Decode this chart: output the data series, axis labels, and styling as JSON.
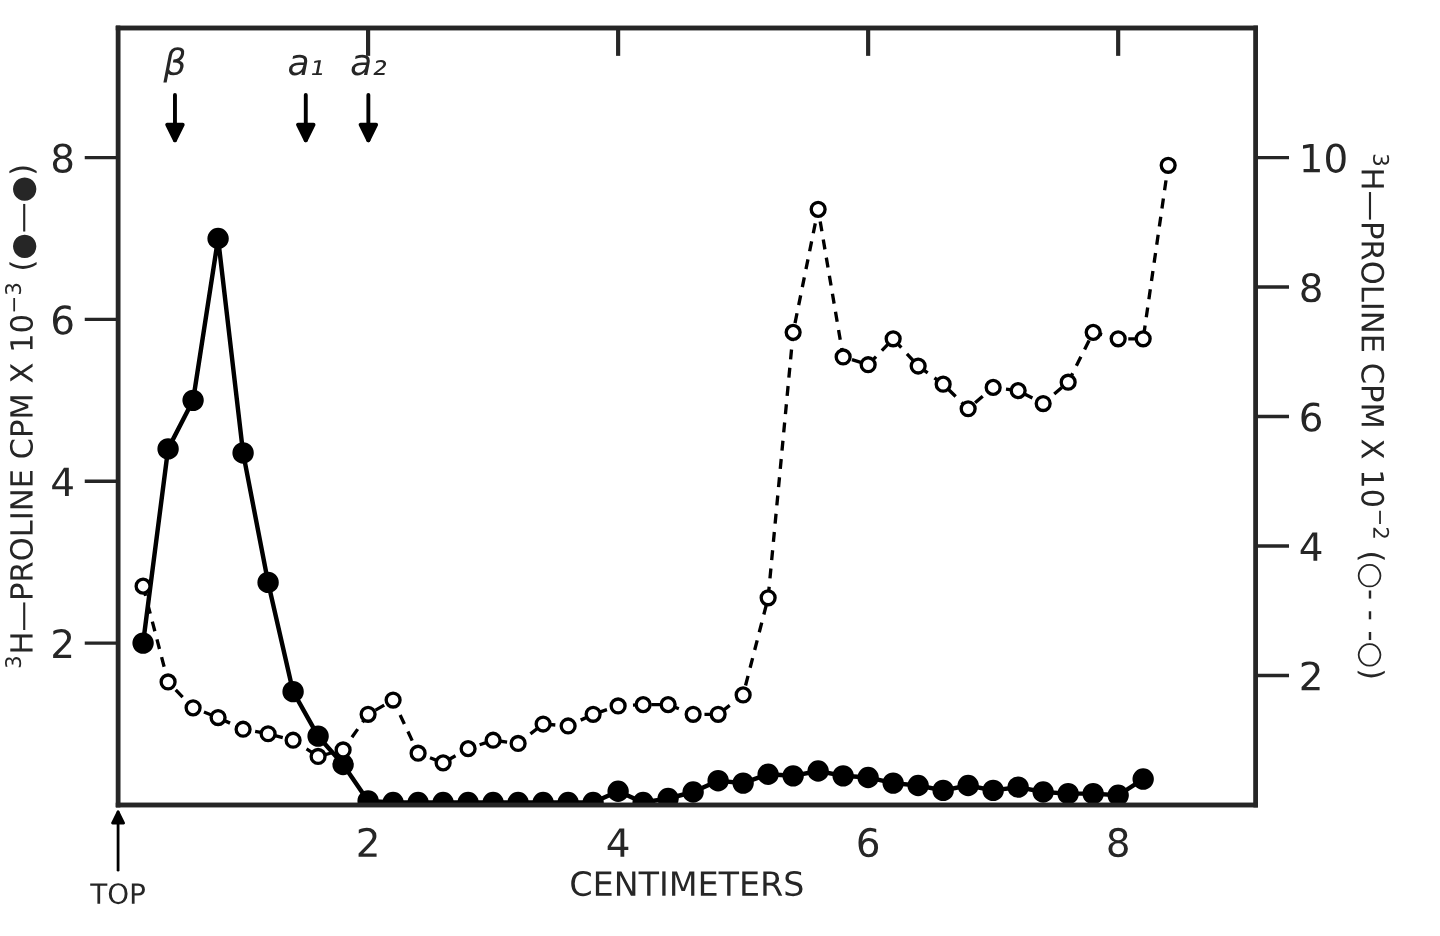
{
  "chart_data": {
    "type": "line",
    "xlabel": "CENTIMETERS",
    "ylabel": "$^{3}$H—PROLINE CPM X 10$^{−3}$ (●—●)",
    "y2label": "$^{3}$H—PROLINE CPM X 10$^{−2}$ (○- - -○)",
    "xlim": [
      0,
      9.1
    ],
    "xticks": [
      2,
      4,
      6,
      8
    ],
    "ylim": [
      0,
      9.6
    ],
    "yticks": [
      2,
      4,
      6,
      8
    ],
    "y2lim": [
      0,
      12
    ],
    "y2ticks": [
      2,
      4,
      6,
      8,
      10
    ],
    "marker": "circle",
    "grid": false,
    "annotations": [
      "β",
      "a₁",
      "a₂",
      "TOP"
    ],
    "series": [
      {
        "color": "#000000",
        "line_style": "solid",
        "x": [
          0.2,
          0.4,
          0.6,
          0.8,
          1.0,
          1.2,
          1.4,
          1.6,
          1.8,
          2.0,
          2.2,
          2.4,
          2.6,
          2.8,
          3.0,
          3.2,
          3.4,
          3.6,
          3.8,
          4.0,
          4.2,
          4.4,
          4.6,
          4.8,
          5.0,
          5.2,
          5.4,
          5.6,
          5.8,
          6.0,
          6.2,
          6.4,
          6.6,
          6.8,
          7.0,
          7.2,
          7.4,
          7.6,
          7.8,
          8.0,
          8.2
        ],
        "values": [
          2.0,
          4.4,
          5.0,
          7.0,
          4.35,
          2.75,
          1.4,
          0.85,
          0.5,
          0.05,
          0.03,
          0.03,
          0.03,
          0.03,
          0.03,
          0.03,
          0.03,
          0.03,
          0.03,
          0.17,
          0.03,
          0.08,
          0.16,
          0.3,
          0.27,
          0.38,
          0.36,
          0.42,
          0.36,
          0.34,
          0.27,
          0.24,
          0.18,
          0.24,
          0.18,
          0.22,
          0.16,
          0.14,
          0.14,
          0.12,
          0.32
        ]
      },
      {
        "color": "#000000",
        "line_style": "dashed",
        "axis": "y2",
        "x": [
          0.2,
          0.4,
          0.6,
          0.8,
          1.0,
          1.2,
          1.4,
          1.6,
          1.8,
          2.0,
          2.2,
          2.4,
          2.6,
          2.8,
          3.0,
          3.2,
          3.4,
          3.6,
          3.8,
          4.0,
          4.2,
          4.4,
          4.6,
          4.8,
          5.0,
          5.2,
          5.4,
          5.6,
          5.8,
          6.0,
          6.2,
          6.4,
          6.6,
          6.8,
          7.0,
          7.2,
          7.4,
          7.6,
          7.8,
          8.0,
          8.2,
          8.4
        ],
        "values": [
          3.38,
          1.9,
          1.5,
          1.35,
          1.17,
          1.1,
          1.0,
          0.75,
          0.85,
          1.4,
          1.62,
          0.8,
          0.65,
          0.87,
          1.0,
          0.95,
          1.25,
          1.22,
          1.4,
          1.53,
          1.55,
          1.55,
          1.4,
          1.4,
          1.7,
          3.2,
          7.3,
          9.2,
          6.92,
          6.8,
          7.2,
          6.78,
          6.5,
          6.12,
          6.45,
          6.4,
          6.2,
          6.53,
          7.3,
          7.2,
          7.2,
          9.88
        ]
      }
    ]
  }
}
